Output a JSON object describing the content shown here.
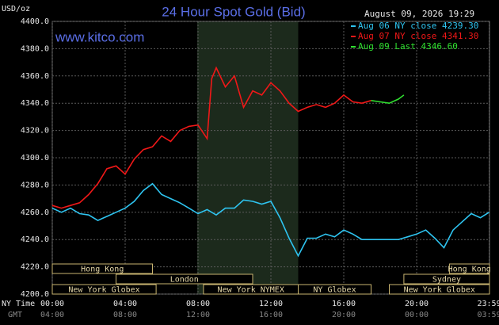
{
  "chart_data": {
    "type": "line",
    "title": "24 Hour Spot Gold (Bid)",
    "y_label": "USD/oz",
    "date": "August 09, 2026 19:29",
    "watermark": "www.kitco.com",
    "x_label_top": "NY Time",
    "x_label_bottom": "GMT",
    "xlim": [
      0,
      24
    ],
    "ylim": [
      4200,
      4400
    ],
    "grid": true,
    "xticks": [
      {
        "value": 0,
        "label": "00:00"
      },
      {
        "value": 4,
        "label": "04:00"
      },
      {
        "value": 8,
        "label": "08:00"
      },
      {
        "value": 12,
        "label": "12:00"
      },
      {
        "value": 16,
        "label": "16:00"
      },
      {
        "value": 20,
        "label": "20:00"
      },
      {
        "value": 23.98,
        "label": "23:59"
      }
    ],
    "gmt_ticks": [
      "04:00",
      "08:00",
      "12:00",
      "16:00",
      "20:00",
      "00:00",
      "03:59"
    ],
    "yticks": [
      {
        "value": 4200,
        "label": "4200.0"
      },
      {
        "value": 4220,
        "label": "4220.0"
      },
      {
        "value": 4240,
        "label": "4240.0"
      },
      {
        "value": 4260,
        "label": "4260.0"
      },
      {
        "value": 4280,
        "label": "4280.0"
      },
      {
        "value": 4300,
        "label": "4300.0"
      },
      {
        "value": 4320,
        "label": "4320.0"
      },
      {
        "value": 4340,
        "label": "4340.0"
      },
      {
        "value": 4360,
        "label": "4360.0"
      },
      {
        "value": 4380,
        "label": "4380.0"
      },
      {
        "value": 4400,
        "label": "4400.0"
      }
    ],
    "series": [
      {
        "name": "Aug 06 NY close 4239.30",
        "color": "#2ec4f0",
        "x": [
          0,
          0.5,
          1,
          1.5,
          2,
          2.5,
          3,
          3.5,
          4,
          4.5,
          5,
          5.5,
          6,
          6.5,
          7,
          7.5,
          8,
          8.5,
          9,
          9.5,
          10,
          10.5,
          11,
          11.5,
          12,
          12.5,
          13,
          13.5,
          14,
          14.5,
          15,
          15.5,
          16,
          16.5,
          17,
          17.5,
          18,
          18.5,
          19,
          19.5,
          20,
          20.5,
          21,
          21.5,
          22,
          22.5,
          23,
          23.5,
          23.98
        ],
        "values": [
          4263,
          4260,
          4263,
          4259,
          4258,
          4254,
          4257,
          4260,
          4263,
          4268,
          4276,
          4281,
          4273,
          4270,
          4267,
          4263,
          4259,
          4262,
          4258,
          4263,
          4263,
          4269,
          4268,
          4266,
          4268,
          4256,
          4241,
          4228,
          4241,
          4241,
          4244,
          4242,
          4247,
          4244,
          4240,
          4240,
          4240,
          4240,
          4240,
          4242,
          4244,
          4247,
          4241,
          4234,
          4247,
          4253,
          4259,
          4256,
          4260
        ]
      },
      {
        "name": "Aug 07 NY close 4341.30",
        "color": "#f01818",
        "x": [
          0,
          0.5,
          1,
          1.5,
          2,
          2.5,
          3,
          3.5,
          4,
          4.5,
          5,
          5.5,
          6,
          6.5,
          7,
          7.5,
          8,
          8.5,
          8.75,
          9,
          9.5,
          10,
          10.5,
          11,
          11.5,
          12,
          12.5,
          13,
          13.5,
          14,
          14.5,
          15,
          15.5,
          16,
          16.5,
          17,
          17.5
        ],
        "values": [
          4265,
          4263,
          4265,
          4267,
          4273,
          4281,
          4292,
          4294,
          4288,
          4299,
          4306,
          4308,
          4316,
          4312,
          4320,
          4323,
          4324,
          4314,
          4358,
          4366,
          4352,
          4360,
          4337,
          4349,
          4346,
          4355,
          4349,
          4340,
          4334,
          4337,
          4339,
          4337,
          4340,
          4346,
          4341,
          4340,
          4342
        ]
      },
      {
        "name": "Aug 09 Last 4346.60",
        "color": "#30e030",
        "x": [
          17.5,
          18,
          18.5,
          19,
          19.3
        ],
        "values": [
          4342,
          4341,
          4340,
          4343,
          4346
        ]
      }
    ],
    "sessions": [
      {
        "label": "Hong Kong",
        "row": 0,
        "start": 0,
        "end": 5.5
      },
      {
        "label": "Hong Kong",
        "row": 0,
        "start": 21.8,
        "end": 24
      },
      {
        "label": "London",
        "row": 1,
        "start": 3.5,
        "end": 11
      },
      {
        "label": "Sydney",
        "row": 1,
        "start": 19.3,
        "end": 24
      },
      {
        "label": "New York Globex",
        "row": 2,
        "start": 0,
        "end": 5.7
      },
      {
        "label": "New York NYMEX",
        "row": 2,
        "start": 8.3,
        "end": 13.5
      },
      {
        "label": "NY Globex",
        "row": 2,
        "start": 13.5,
        "end": 17.5
      },
      {
        "label": "New York Globex",
        "row": 2,
        "start": 18.5,
        "end": 24
      }
    ]
  }
}
